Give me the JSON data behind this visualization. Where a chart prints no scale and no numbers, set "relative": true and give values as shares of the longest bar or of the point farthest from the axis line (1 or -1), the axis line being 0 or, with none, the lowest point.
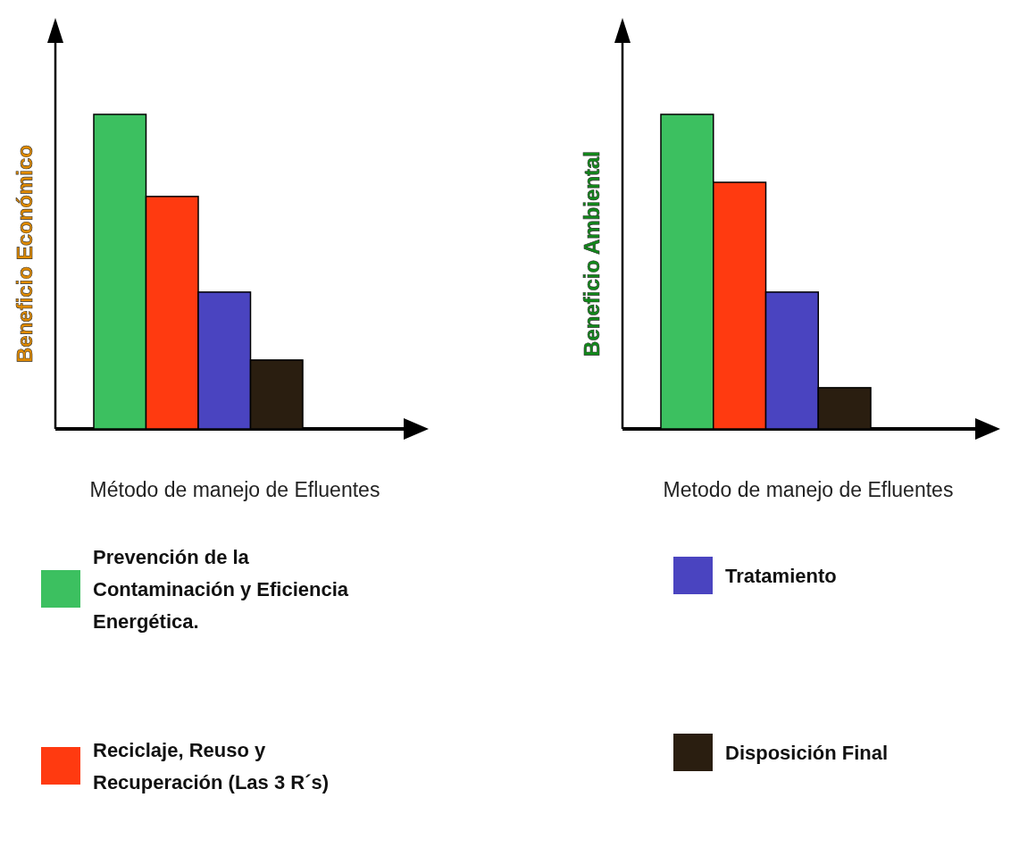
{
  "chart_data": [
    {
      "type": "bar",
      "stacked": true,
      "relative": true,
      "ylabel": "Beneficio Económico",
      "xlabel": "Método de manejo de Efluentes",
      "categories": [
        null,
        null,
        null,
        null
      ],
      "legend": "bottom",
      "series": [
        {
          "name": "Prevención de la Contaminación y Eficiencia Energética.",
          "color": "#3cc060",
          "values": [
            1,
            null,
            null,
            null
          ]
        },
        {
          "name": "Reciclaje, Reuso y Recuperación (Las 3 R´s)",
          "color": "#ff3a10",
          "values": [
            null,
            0.739,
            null,
            null
          ]
        },
        {
          "color": "#4a44c0",
          "values": [
            null,
            null,
            0.435,
            null
          ]
        },
        {
          "color": "#2a1e10",
          "values": [
            null,
            null,
            null,
            0.219
          ]
        }
      ]
    },
    {
      "type": "bar",
      "stacked": true,
      "relative": true,
      "ylabel": "Beneficio Ambiental",
      "xlabel": "Metodo de manejo de Efluentes",
      "categories": [
        null,
        null,
        null,
        null
      ],
      "legend": "bottom",
      "series": [
        {
          "color": "#3cc060",
          "values": [
            1,
            null,
            null,
            null
          ]
        },
        {
          "color": "#ff3a10",
          "values": [
            null,
            0.784,
            null,
            null
          ]
        },
        {
          "name": "Tratamiento",
          "color": "#4a44c0",
          "values": [
            null,
            null,
            0.435,
            null
          ]
        },
        {
          "name": "Disposición Final",
          "color": "#2a1e10",
          "values": [
            null,
            null,
            null,
            0.131
          ]
        }
      ]
    }
  ]
}
